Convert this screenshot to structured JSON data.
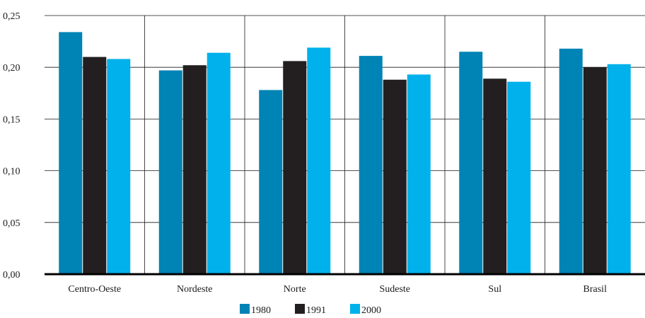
{
  "chart_data": {
    "type": "bar",
    "categories": [
      "Centro-Oeste",
      "Nordeste",
      "Norte",
      "Sudeste",
      "Sul",
      "Brasil"
    ],
    "series": [
      {
        "name": "1980",
        "values": [
          0.234,
          0.197,
          0.178,
          0.211,
          0.215,
          0.218
        ],
        "color": "#0083b5"
      },
      {
        "name": "1991",
        "values": [
          0.21,
          0.202,
          0.206,
          0.188,
          0.189,
          0.2
        ],
        "color": "#231f20"
      },
      {
        "name": "2000",
        "values": [
          0.208,
          0.214,
          0.219,
          0.193,
          0.186,
          0.203
        ],
        "color": "#00b1eb"
      }
    ],
    "ylim": [
      0,
      0.25
    ],
    "yticks": [
      "0,00",
      "0,05",
      "0,10",
      "0,15",
      "0,20",
      "0,25"
    ],
    "ytick_values": [
      0,
      0.05,
      0.1,
      0.15,
      0.2,
      0.25
    ],
    "grid": "horizontal",
    "legend_position": "bottom-center"
  }
}
